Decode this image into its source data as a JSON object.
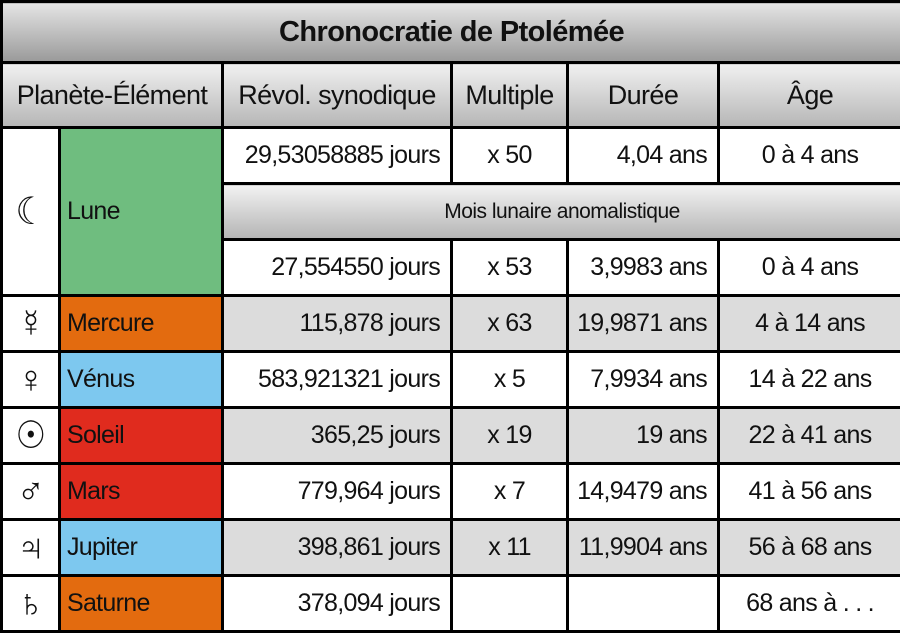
{
  "title": "Chronocratie de Ptolémée",
  "headers": {
    "planet_element": "Planète-Élément",
    "revolution": "Révol. synodique",
    "multiple": "Multiple",
    "duration": "Durée",
    "age": "Âge"
  },
  "subheader": "Mois lunaire anomalistique",
  "moon": {
    "symbol": "☾",
    "name": "Lune",
    "color": "#6fbd7f",
    "row1": {
      "revolution": "29,53058885 jours",
      "multiple": "x 50",
      "duration": "4,04 ans",
      "age": "0 à 4 ans"
    },
    "row2": {
      "revolution": "27,554550 jours",
      "multiple": "x 53",
      "duration": "3,9983 ans",
      "age": "0 à 4 ans"
    }
  },
  "planets": [
    {
      "symbol": "☿",
      "name": "Mercure",
      "color": "#e36b0f",
      "revolution": "115,878 jours",
      "multiple": "x 63",
      "duration": "19,9871 ans",
      "age": "4 à 14 ans"
    },
    {
      "symbol": "♀",
      "name": "Vénus",
      "color": "#7dc8ef",
      "revolution": "583,921321 jours",
      "multiple": "x 5",
      "duration": "7,9934 ans",
      "age": "14 à 22 ans"
    },
    {
      "symbol": "☉",
      "name": "Soleil",
      "color": "#e02b1e",
      "revolution": "365,25 jours",
      "multiple": "x 19",
      "duration": "19 ans",
      "age": "22 à 41 ans"
    },
    {
      "symbol": "♂",
      "name": "Mars",
      "color": "#e02b1e",
      "revolution": "779,964 jours",
      "multiple": "x 7",
      "duration": "14,9479 ans",
      "age": "41 à 56 ans"
    },
    {
      "symbol": "♃",
      "name": "Jupiter",
      "color": "#7dc8ef",
      "revolution": "398,861 jours",
      "multiple": "x 11",
      "duration": "11,9904 ans",
      "age": "56 à 68 ans"
    },
    {
      "symbol": "♄",
      "name": "Saturne",
      "color": "#e36b0f",
      "revolution": "378,094 jours",
      "multiple": "",
      "duration": "",
      "age": "68 ans à . . ."
    }
  ]
}
